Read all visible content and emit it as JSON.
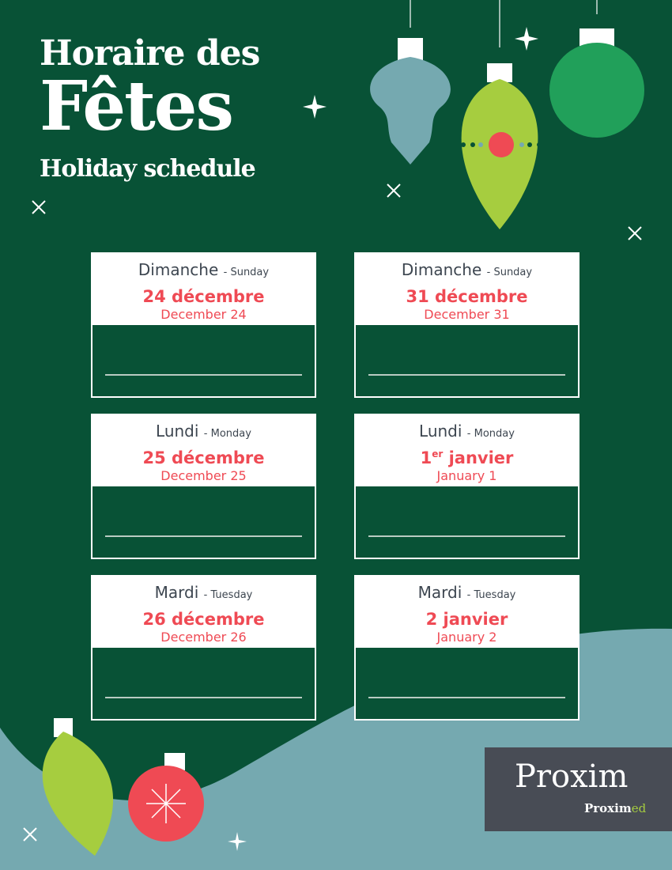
{
  "header": {
    "line1": "Horaire des",
    "line2": "Fêtes",
    "line3": "Holiday schedule"
  },
  "colors": {
    "background": "#085236",
    "accent_red": "#ef4a54",
    "lime": "#a6cd3f",
    "teal": "#75a9b0"
  },
  "days": [
    {
      "day_fr": "Dimanche",
      "day_en": "- Sunday",
      "date_fr": "24 décembre",
      "date_fr_sup": "",
      "date_fr_rest": "",
      "date_en": "December 24"
    },
    {
      "day_fr": "Dimanche",
      "day_en": "- Sunday",
      "date_fr": "31 décembre",
      "date_fr_sup": "",
      "date_fr_rest": "",
      "date_en": "December 31"
    },
    {
      "day_fr": "Lundi",
      "day_en": "- Monday",
      "date_fr": "25 décembre",
      "date_fr_sup": "",
      "date_fr_rest": "",
      "date_en": "December 25"
    },
    {
      "day_fr": "Lundi",
      "day_en": "- Monday",
      "date_fr": "1",
      "date_fr_sup": "er",
      "date_fr_rest": " janvier",
      "date_en": "January 1"
    },
    {
      "day_fr": "Mardi",
      "day_en": "- Tuesday",
      "date_fr": "26 décembre",
      "date_fr_sup": "",
      "date_fr_rest": "",
      "date_en": "December 26"
    },
    {
      "day_fr": "Mardi",
      "day_en": "- Tuesday",
      "date_fr": "2 janvier",
      "date_fr_sup": "",
      "date_fr_rest": "",
      "date_en": "January 2"
    }
  ],
  "logo": {
    "brand": "Proxim",
    "sub_a": "Proxim",
    "sub_b": "ed"
  }
}
